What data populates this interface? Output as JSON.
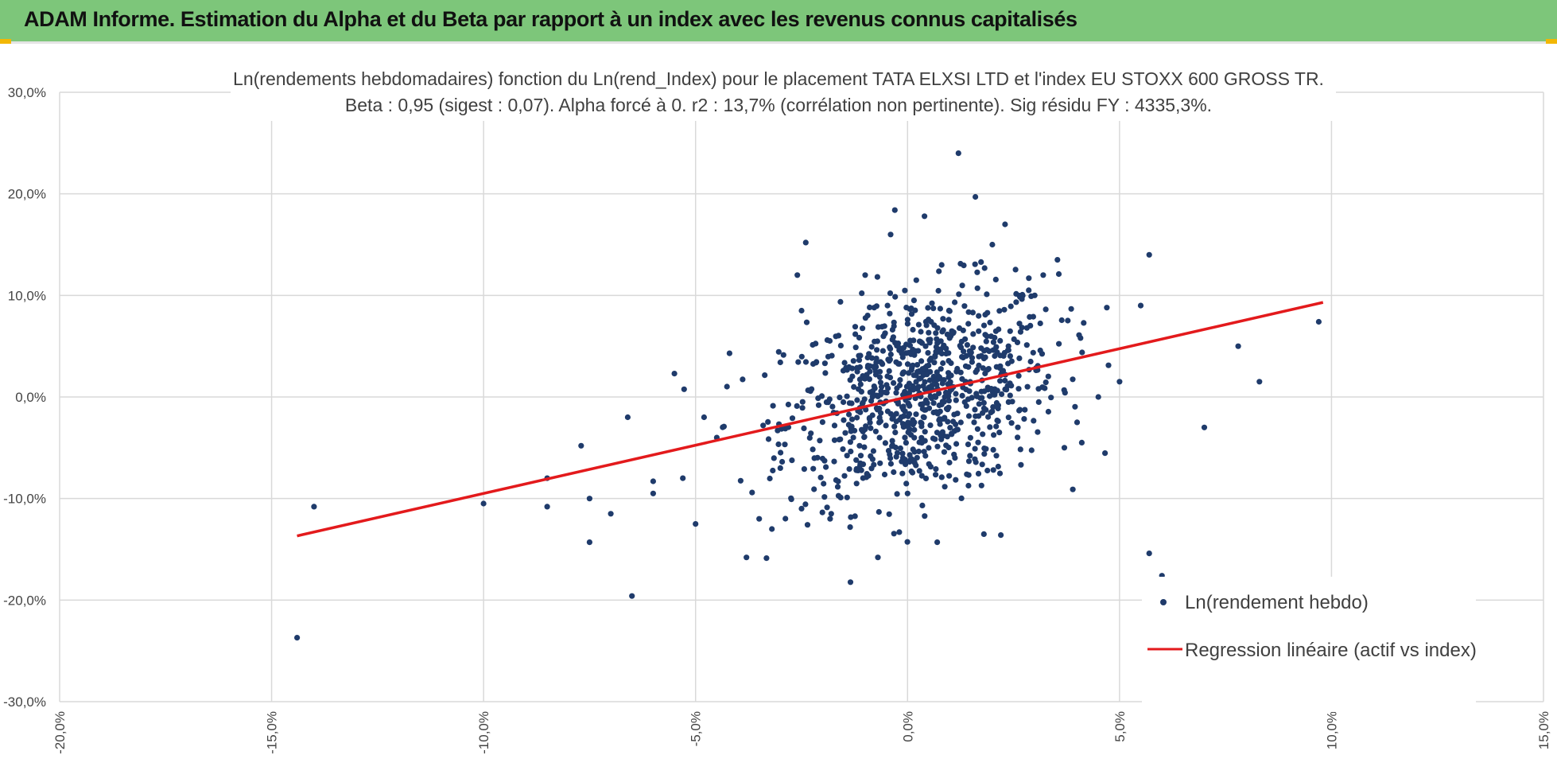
{
  "banner": {
    "title": "ADAM Informe. Estimation du Alpha et du Beta par rapport à un index avec les revenus connus capitalisés"
  },
  "colors": {
    "banner": "#7dc67a",
    "points": "#1f3b6b",
    "regression": "#e31a1c",
    "grid": "#d9d9d9",
    "corner_marks": "#f2b705"
  },
  "chart_data": {
    "type": "scatter",
    "title_line1": "Ln(rendements hebdomadaires) fonction du Ln(rend_Index) pour le placement TATA ELXSI LTD et l'index EU STOXX 600 GROSS TR.",
    "title_line2": "Beta : 0,95 (sigest : 0,07). Alpha forcé à 0. r2 : 13,7% (corrélation non pertinente). Sig résidu FY : 4335,3%.",
    "xlim": [
      -0.2,
      0.15
    ],
    "ylim": [
      -0.3,
      0.3
    ],
    "x_ticks": [
      "-20,0%",
      "-15,0%",
      "-10,0%",
      "-5,0%",
      "0,0%",
      "5,0%",
      "10,0%",
      "15,0%"
    ],
    "y_ticks": [
      "30,0%",
      "20,0%",
      "10,0%",
      "0,0%",
      "-10,0%",
      "-20,0%",
      "-30,0%"
    ],
    "grid": true,
    "legend_position": "bottom-right",
    "legend": {
      "points_label": "Ln(rendement hebdo)",
      "line_label": "Regression linéaire (actif vs index)"
    },
    "regression": {
      "beta": 0.95,
      "x_range": [
        -0.144,
        0.098
      ]
    },
    "cloud": {
      "count": 900,
      "x_mean": 0.003,
      "x_sd": 0.016,
      "y_sd": 0.05
    },
    "points": [
      [
        -0.144,
        -0.237
      ],
      [
        -0.14,
        -0.108
      ],
      [
        -0.1,
        -0.105
      ],
      [
        -0.085,
        -0.08
      ],
      [
        -0.085,
        -0.108
      ],
      [
        -0.075,
        -0.143
      ],
      [
        -0.075,
        -0.1
      ],
      [
        -0.077,
        -0.048
      ],
      [
        -0.07,
        -0.115
      ],
      [
        -0.065,
        -0.196
      ],
      [
        -0.066,
        -0.02
      ],
      [
        -0.06,
        -0.083
      ],
      [
        -0.06,
        -0.095
      ],
      [
        -0.055,
        0.023
      ],
      [
        -0.053,
        -0.08
      ],
      [
        -0.05,
        -0.125
      ],
      [
        -0.048,
        -0.02
      ],
      [
        -0.045,
        -0.04
      ],
      [
        -0.042,
        0.043
      ],
      [
        -0.038,
        -0.158
      ],
      [
        -0.035,
        -0.12
      ],
      [
        -0.032,
        -0.13
      ],
      [
        -0.03,
        -0.07
      ],
      [
        -0.025,
        -0.11
      ],
      [
        -0.024,
        0.152
      ],
      [
        -0.026,
        0.12
      ],
      [
        -0.025,
        0.085
      ],
      [
        -0.018,
        -0.115
      ],
      [
        0.057,
        0.14
      ],
      [
        0.057,
        -0.154
      ],
      [
        0.06,
        -0.176
      ],
      [
        0.07,
        -0.03
      ],
      [
        0.078,
        0.05
      ],
      [
        0.083,
        0.015
      ],
      [
        0.097,
        0.074
      ],
      [
        0.055,
        0.09
      ],
      [
        0.05,
        0.015
      ],
      [
        0.045,
        0.0
      ],
      [
        0.047,
        0.088
      ],
      [
        0.04,
        -0.025
      ],
      [
        0.012,
        0.24
      ],
      [
        0.016,
        0.197
      ],
      [
        -0.003,
        0.184
      ],
      [
        0.004,
        0.178
      ],
      [
        0.02,
        0.15
      ],
      [
        0.023,
        0.17
      ],
      [
        0.018,
        -0.135
      ],
      [
        0.022,
        -0.136
      ],
      [
        0.007,
        -0.143
      ],
      [
        -0.007,
        -0.158
      ],
      [
        0.0,
        -0.095
      ],
      [
        -0.01,
        0.12
      ],
      [
        0.03,
        0.1
      ],
      [
        0.032,
        0.12
      ],
      [
        0.037,
        -0.05
      ]
    ]
  }
}
